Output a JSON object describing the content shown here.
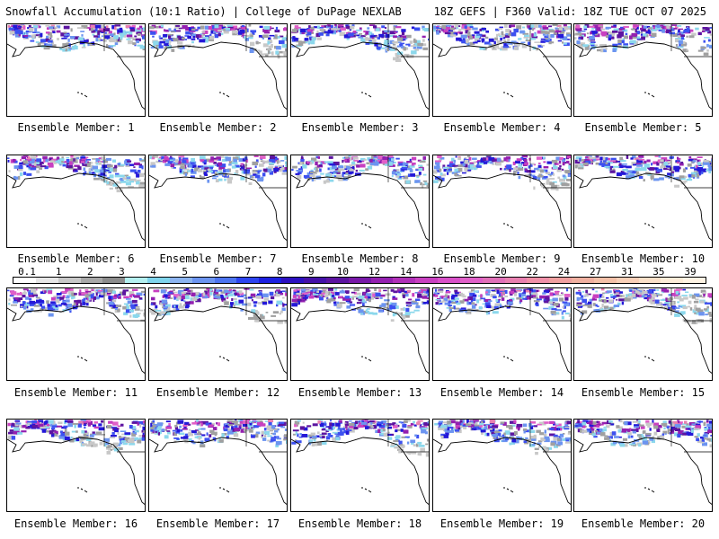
{
  "header": {
    "title_left": "Snowfall Accumulation (10:1 Ratio) | College of DuPage NEXLAB",
    "title_right": "18Z GEFS | F360 Valid: 18Z TUE OCT 07 2025"
  },
  "map_data": {
    "region": "North Pacific / Alaska / Western North America",
    "panels": [
      {
        "label": "Ensemble Member: 1"
      },
      {
        "label": "Ensemble Member: 2"
      },
      {
        "label": "Ensemble Member: 3"
      },
      {
        "label": "Ensemble Member: 4"
      },
      {
        "label": "Ensemble Member: 5"
      },
      {
        "label": "Ensemble Member: 6"
      },
      {
        "label": "Ensemble Member: 7"
      },
      {
        "label": "Ensemble Member: 8"
      },
      {
        "label": "Ensemble Member: 9"
      },
      {
        "label": "Ensemble Member: 10"
      },
      {
        "label": "Ensemble Member: 11"
      },
      {
        "label": "Ensemble Member: 12"
      },
      {
        "label": "Ensemble Member: 13"
      },
      {
        "label": "Ensemble Member: 14"
      },
      {
        "label": "Ensemble Member: 15"
      },
      {
        "label": "Ensemble Member: 16"
      },
      {
        "label": "Ensemble Member: 17"
      },
      {
        "label": "Ensemble Member: 18"
      },
      {
        "label": "Ensemble Member: 19"
      },
      {
        "label": "Ensemble Member: 20"
      }
    ]
  },
  "colorbar": {
    "labels": [
      "0.1",
      "1",
      "2",
      "3",
      "4",
      "5",
      "6",
      "7",
      "8",
      "9",
      "10",
      "12",
      "14",
      "16",
      "18",
      "20",
      "22",
      "24",
      "27",
      "31",
      "35",
      "39"
    ],
    "colors": [
      "#ffffff",
      "#e6e6e6",
      "#c8c8c8",
      "#a8a8a8",
      "#8c8c8c",
      "#b4f0f0",
      "#7fd4ec",
      "#8cb4f0",
      "#6c94f0",
      "#4c74f0",
      "#2c44f0",
      "#1c20e0",
      "#2c10c0",
      "#4410a8",
      "#5c14a0",
      "#7818a8",
      "#9420b0",
      "#b030b8",
      "#c840c0",
      "#d850c8",
      "#e060c8",
      "#e070b8",
      "#e880b0",
      "#f090a8",
      "#f0a0a0",
      "#f0b0a0",
      "#f4c0a8",
      "#f8d0b8",
      "#fae0c8",
      "#fcecd8",
      "#fff4e4"
    ]
  }
}
